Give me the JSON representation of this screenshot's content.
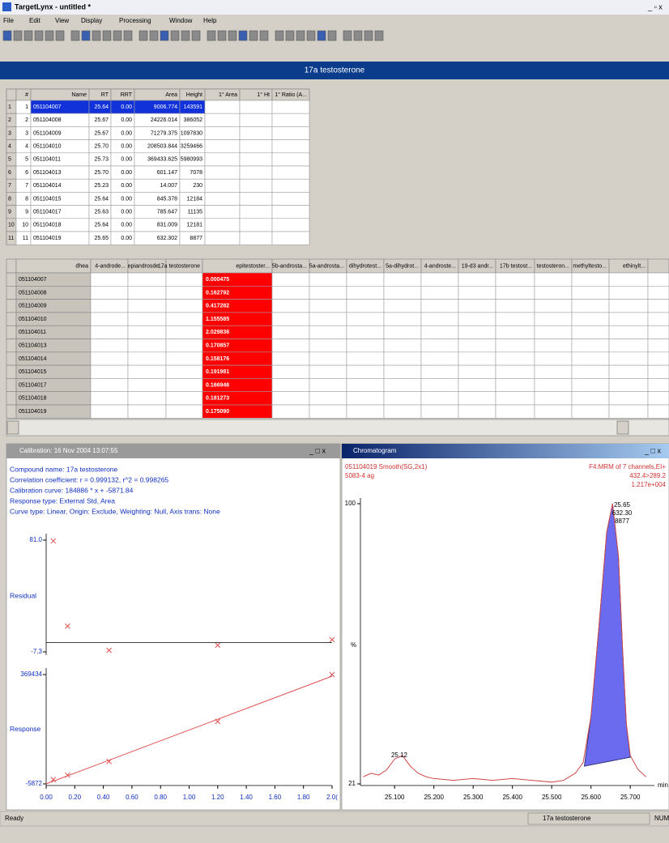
{
  "window": {
    "title": "TargetLynx - untitled *",
    "menu": [
      "File",
      "Edit",
      "View",
      "Display",
      "Processing",
      "Window",
      "Help"
    ]
  },
  "compound_header": "17a testosterone",
  "peak_table": {
    "columns": [
      "#",
      "Name",
      "RT",
      "RRT",
      "Area",
      "Height",
      "1° Area",
      "1° Ht",
      "1° Ratio (A..."
    ],
    "row_headers": [
      "1",
      "2",
      "3",
      "4",
      "5",
      "6",
      "7",
      "8",
      "9",
      "10",
      "11"
    ],
    "rows": [
      [
        "1",
        "051104007",
        "25.64",
        "0.00",
        "9006.774",
        "143591"
      ],
      [
        "2",
        "051104008",
        "25.67",
        "0.00",
        "24226.014",
        "386052"
      ],
      [
        "3",
        "051104009",
        "25.67",
        "0.00",
        "71279.375",
        "1097830"
      ],
      [
        "4",
        "051104010",
        "25.70",
        "0.00",
        "208503.844",
        "3259466"
      ],
      [
        "5",
        "051104011",
        "25.73",
        "0.00",
        "369433.625",
        "5980993"
      ],
      [
        "6",
        "051104013",
        "25.70",
        "0.00",
        "601.147",
        "7078"
      ],
      [
        "7",
        "051104014",
        "25.23",
        "0.00",
        "14.007",
        "230"
      ],
      [
        "8",
        "051104015",
        "25.64",
        "0.00",
        "845.378",
        "12184"
      ],
      [
        "9",
        "051104017",
        "25.63",
        "0.00",
        "785.647",
        "11135"
      ],
      [
        "10",
        "051104018",
        "25.64",
        "0.00",
        "831.009",
        "12181"
      ],
      [
        "11",
        "051104019",
        "25.65",
        "0.00",
        "632.302",
        "8877"
      ]
    ]
  },
  "ratio_table": {
    "columns": [
      "dhea",
      "4-androde...",
      "epiandrosde...",
      "17a testosterone",
      "epitestoster...",
      "5b-androsta...",
      "5a-androsta...",
      "dihydrotest...",
      "5a-dihydrot...",
      "4-androste...",
      "19-d3 andr...",
      "17b testost...",
      "testosteron...",
      "methyltesto...",
      "ethinylt..."
    ],
    "rows": [
      [
        "051104007",
        "0.000475"
      ],
      [
        "051104008",
        "0.162792"
      ],
      [
        "051104009",
        "0.417282"
      ],
      [
        "051104010",
        "1.155585"
      ],
      [
        "051104011",
        "2.029836"
      ],
      [
        "051104013",
        "0.170857"
      ],
      [
        "051104014",
        "0.158176"
      ],
      [
        "051104015",
        "0.191981"
      ],
      [
        "051104017",
        "0.166946"
      ],
      [
        "051104018",
        "0.181273"
      ],
      [
        "051104019",
        "0.175090"
      ]
    ]
  },
  "calibration": {
    "title": "Calibration: 16 Nov 2004 13:07:55",
    "info": [
      "Compound name: 17a testosterone",
      "Correlation coefficient: r = 0.999132, r^2 = 0.998265",
      "Calibration curve: 184886 * x + -5871.84",
      "Response type: External Std, Area",
      "Curve type: Linear, Origin: Exclude, Weighting: Null, Axis trans: None"
    ],
    "xlim": [
      0,
      2
    ],
    "xticks": [
      {
        "value": 0,
        "label": "0.00"
      },
      {
        "value": 0.2,
        "label": "0.20"
      },
      {
        "value": 0.4,
        "label": "0.40"
      },
      {
        "value": 0.6,
        "label": "0.60"
      },
      {
        "value": 0.8,
        "label": "0.80"
      },
      {
        "value": 1,
        "label": "1.00"
      },
      {
        "value": 1.2,
        "label": "1.20"
      },
      {
        "value": 1.4,
        "label": "1.40"
      },
      {
        "value": 1.6,
        "label": "1.60"
      },
      {
        "value": 1.8,
        "label": "1.80"
      },
      {
        "value": 2,
        "label": "2.0("
      }
    ],
    "color": "#e05050",
    "residual": {
      "axis_label": "Residual",
      "ylim": [
        -7.3,
        81.0
      ],
      "yticks": [
        {
          "value": 81.0,
          "label": "81.0"
        },
        -7.3
      ],
      "x": [
        0.05,
        0.15,
        0.44,
        1.2,
        2.0
      ],
      "values": [
        80.4,
        13,
        -6,
        -2,
        2.4
      ]
    },
    "response": {
      "axis_label": "Response",
      "ylim": [
        -5872,
        369434
      ],
      "yticks": [
        369434,
        -5872
      ],
      "x": [
        0.05,
        0.15,
        0.44,
        1.2,
        2.0
      ],
      "values": [
        9007,
        24226,
        71279,
        208504,
        369434
      ],
      "fit": {
        "x": [
          0,
          2
        ],
        "values": [
          -5872,
          363900
        ]
      }
    }
  },
  "chromatogram": {
    "title": "Chromatogram",
    "info_left": [
      "051104019 Smooth(SG,2x1)",
      "5083-4 ag"
    ],
    "info_right": [
      "F4:MRM of 7 channels,EI+",
      "432.4>289.2",
      "1.217e+004"
    ],
    "peak_labels": [
      "25.65",
      "632.30",
      "8877"
    ],
    "minor_peak_label": "25.12",
    "y_label": "%",
    "x_unit": "min",
    "xlim": [
      25.013,
      25.745
    ],
    "ylim": [
      21,
      100
    ],
    "yticks": [
      100,
      21
    ],
    "xticks": [
      {
        "value": 25.1,
        "label": "25.100"
      },
      {
        "value": 25.2,
        "label": "25.200"
      },
      {
        "value": 25.3,
        "label": "25.300"
      },
      {
        "value": 25.4,
        "label": "25.400"
      },
      {
        "value": 25.5,
        "label": "25.500"
      },
      {
        "value": 25.6,
        "label": "25.600"
      },
      {
        "value": 25.7,
        "label": "25.700"
      }
    ],
    "color": "#d04848",
    "fill_color": "#6b6bf0",
    "trace": {
      "x": [
        25.02,
        25.04,
        25.06,
        25.08,
        25.1,
        25.12,
        25.14,
        25.16,
        25.18,
        25.2,
        25.25,
        25.3,
        25.35,
        25.4,
        25.45,
        25.5,
        25.53,
        25.56,
        25.58,
        25.6,
        25.62,
        25.64,
        25.655,
        25.67,
        25.68,
        25.69,
        25.7,
        25.72,
        25.74
      ],
      "values": [
        23,
        24,
        23.5,
        25,
        28,
        29,
        26,
        24,
        23,
        22.5,
        22,
        22.5,
        22,
        22.5,
        22,
        21.5,
        22,
        24,
        27,
        40,
        65,
        92,
        100,
        85,
        60,
        38,
        29,
        25,
        23
      ]
    },
    "integration": {
      "x": [
        25.583,
        25.7
      ],
      "values": [
        26,
        28.5
      ]
    }
  },
  "status": {
    "left": "Ready",
    "compound": "17a testosterone",
    "right": "NUM"
  }
}
